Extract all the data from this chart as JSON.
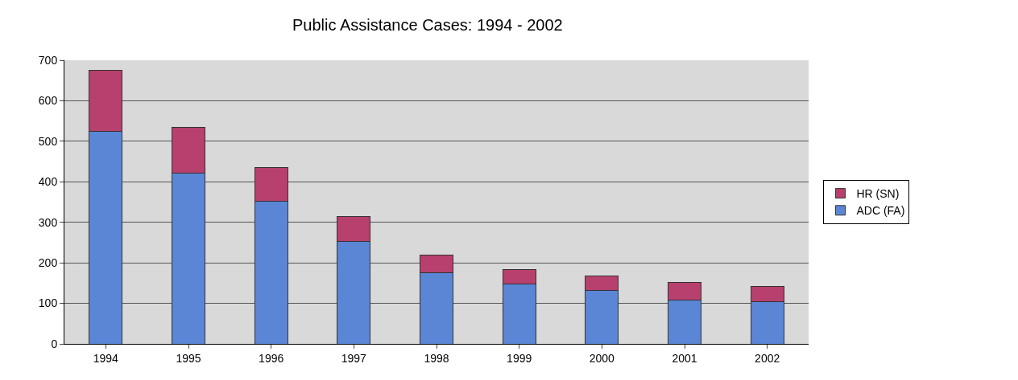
{
  "chart_data": {
    "type": "bar",
    "title": "Public Assistance Cases: 1994 - 2002",
    "categories": [
      "1994",
      "1995",
      "1996",
      "1997",
      "1998",
      "1999",
      "2000",
      "2001",
      "2002"
    ],
    "stacked": true,
    "series": [
      {
        "name": "ADC (FA)",
        "color": "#5b86d6",
        "values": [
          525,
          422,
          352,
          253,
          176,
          147,
          131,
          108,
          104
        ]
      },
      {
        "name": "HR (SN)",
        "color": "#b8406e",
        "values": [
          150,
          113,
          84,
          61,
          43,
          36,
          36,
          43,
          38
        ]
      }
    ],
    "ylim": [
      0,
      700
    ],
    "yticks": [
      0,
      100,
      200,
      300,
      400,
      500,
      600,
      700
    ],
    "grid": "y",
    "legend": "right"
  }
}
